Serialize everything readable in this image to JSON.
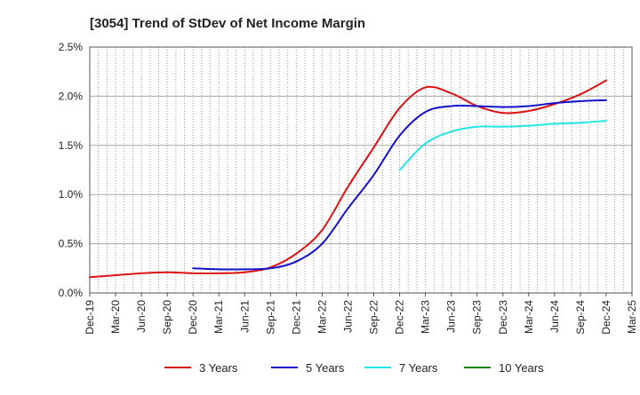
{
  "chart_data": {
    "type": "line",
    "title": "[3054]  Trend of StDev of Net Income Margin",
    "xlabel": "",
    "ylabel": "",
    "x_ticks": [
      "Dec-19",
      "Mar-20",
      "Jun-20",
      "Sep-20",
      "Dec-20",
      "Mar-21",
      "Jun-21",
      "Sep-21",
      "Dec-21",
      "Mar-22",
      "Jun-22",
      "Sep-22",
      "Dec-22",
      "Mar-23",
      "Jun-23",
      "Sep-23",
      "Dec-23",
      "Mar-24",
      "Jun-24",
      "Sep-24",
      "Dec-24",
      "Mar-25"
    ],
    "y_ticks": [
      "0.0%",
      "0.5%",
      "1.0%",
      "1.5%",
      "2.0%",
      "2.5%"
    ],
    "ylim": [
      0,
      2.5
    ],
    "y_unit": "%",
    "grid": true,
    "legend_position": "bottom",
    "series": [
      {
        "name": "3 Years",
        "color": "#dd1111",
        "x": [
          "Dec-19",
          "Mar-20",
          "Jun-20",
          "Sep-20",
          "Dec-20",
          "Mar-21",
          "Jun-21",
          "Sep-21",
          "Dec-21",
          "Mar-22",
          "Jun-22",
          "Sep-22",
          "Dec-22",
          "Mar-23",
          "Jun-23",
          "Sep-23",
          "Dec-23",
          "Mar-24",
          "Jun-24",
          "Sep-24",
          "Dec-24"
        ],
        "values": [
          0.16,
          0.18,
          0.2,
          0.21,
          0.2,
          0.2,
          0.21,
          0.26,
          0.4,
          0.64,
          1.08,
          1.48,
          1.88,
          2.09,
          2.03,
          1.9,
          1.83,
          1.85,
          1.92,
          2.02,
          2.16
        ]
      },
      {
        "name": "5 Years",
        "color": "#1111cc",
        "x": [
          "Dec-20",
          "Mar-21",
          "Jun-21",
          "Sep-21",
          "Dec-21",
          "Mar-22",
          "Jun-22",
          "Sep-22",
          "Dec-22",
          "Mar-23",
          "Jun-23",
          "Sep-23",
          "Dec-23",
          "Mar-24",
          "Jun-24",
          "Sep-24",
          "Dec-24"
        ],
        "values": [
          0.25,
          0.24,
          0.24,
          0.25,
          0.32,
          0.5,
          0.86,
          1.2,
          1.6,
          1.84,
          1.9,
          1.9,
          1.89,
          1.9,
          1.93,
          1.95,
          1.96
        ]
      },
      {
        "name": "7 Years",
        "color": "#22e5e5",
        "x": [
          "Dec-22",
          "Mar-23",
          "Jun-23",
          "Sep-23",
          "Dec-23",
          "Mar-24",
          "Jun-24",
          "Sep-24",
          "Dec-24"
        ],
        "values": [
          1.25,
          1.52,
          1.64,
          1.69,
          1.69,
          1.7,
          1.72,
          1.73,
          1.75
        ]
      },
      {
        "name": "10 Years",
        "color": "#118811",
        "x": [],
        "values": []
      }
    ]
  }
}
